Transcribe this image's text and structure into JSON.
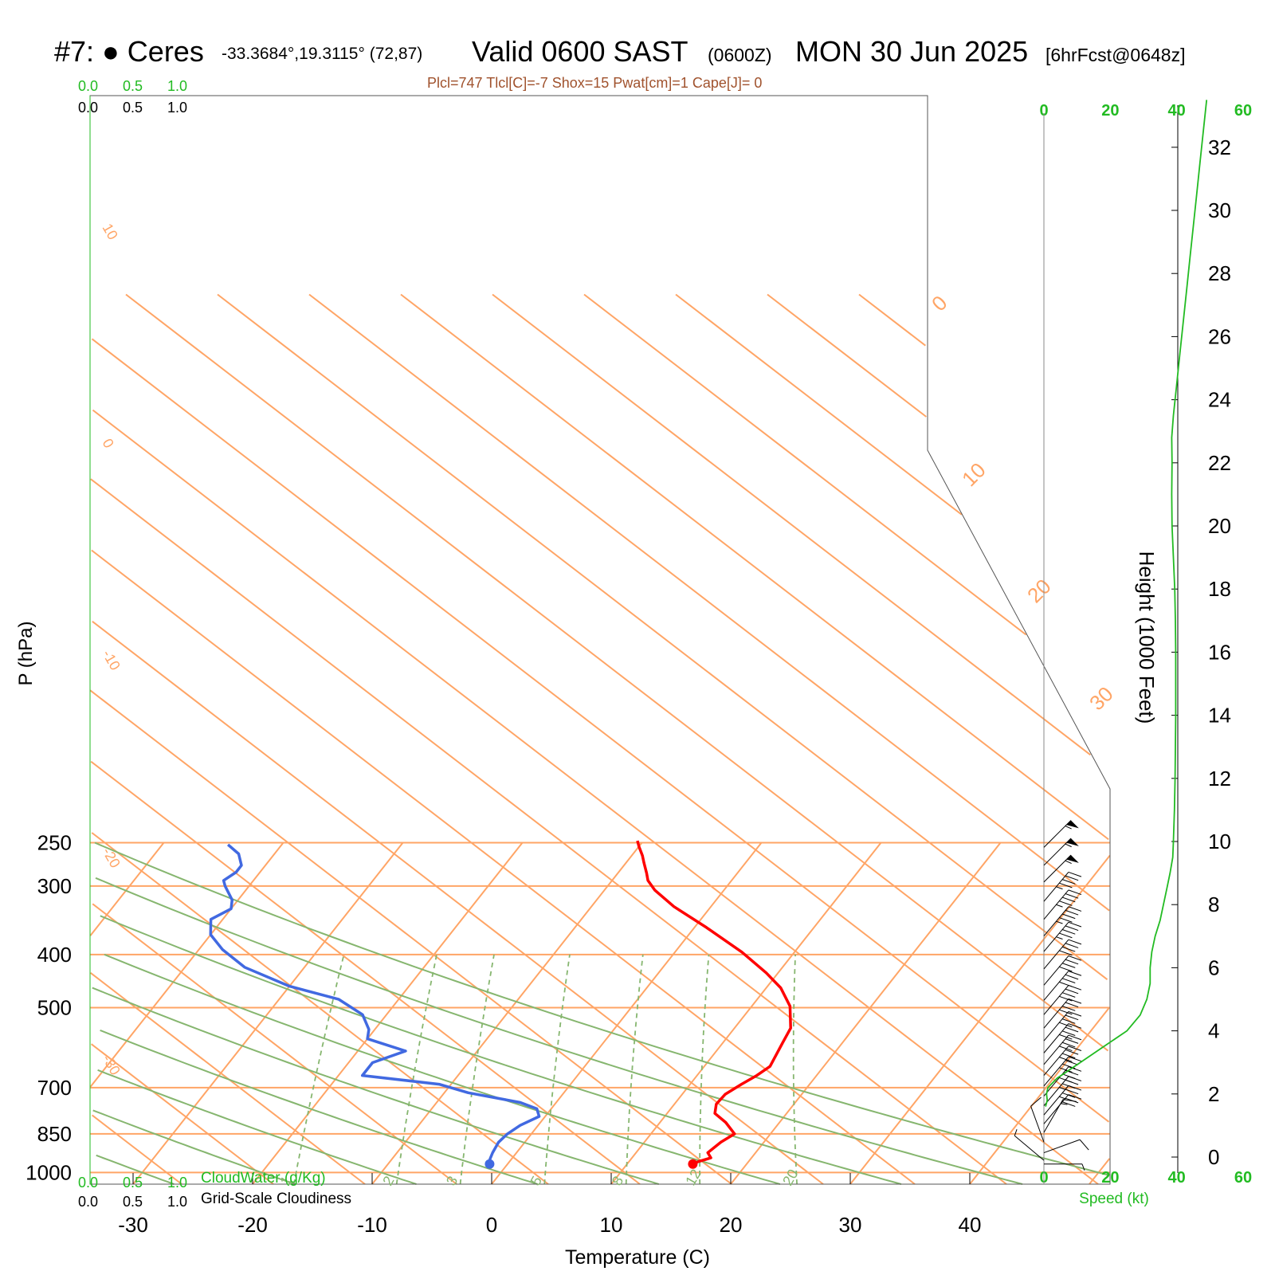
{
  "header": {
    "station": "#7:  ● Ceres",
    "coords": "-33.3684°,19.3115° (72,87)",
    "valid": "Valid 0600 SAST",
    "zulu": "(0600Z)",
    "date": "MON 30 Jun 2025",
    "forecast": "[6hrFcst@0648z]",
    "indices": "Plcl=747 Tlcl[C]=-7 Shox=15 Pwat[cm]=1 Cape[J]= 0"
  },
  "colors": {
    "temperature": "#ff0000",
    "dewpoint": "#4169e1",
    "isotherm": "#ffa566",
    "dry_adiabat": "#86b66f",
    "mixing_ratio": "#86b66f",
    "speed_profile": "#22bb22",
    "cloud_label": "#22bb22"
  },
  "chart_data": {
    "type": "line",
    "title": "",
    "xlabel": "Temperature (C)",
    "ylabel": "P (hPa)",
    "right_axis_label": "Height (1000 Feet)",
    "xlim": [
      -33,
      44
    ],
    "ylim": [
      1050,
      250
    ],
    "x_ticks": [
      "-30",
      "-20",
      "-10",
      "0",
      "10",
      "20",
      "30",
      "40"
    ],
    "y_ticks": [
      "250",
      "300",
      "400",
      "500",
      "700",
      "850",
      "1000"
    ],
    "height_ticks": [
      "0",
      "2",
      "4",
      "6",
      "8",
      "10",
      "12",
      "14",
      "16",
      "18",
      "20",
      "22",
      "24",
      "26",
      "28",
      "30",
      "32"
    ],
    "isotherm_labels": [
      "10",
      "0",
      "-10",
      "-20",
      "-30",
      "0",
      "10",
      "20",
      "30"
    ],
    "mixing_ratio_labels": [
      "1",
      "2",
      "3",
      "5",
      "8",
      "12",
      "20"
    ],
    "series": [
      {
        "name": "Temperature",
        "points": [
          [
            15.5,
            965
          ],
          [
            15.8,
            955
          ],
          [
            16.6,
            940
          ],
          [
            16.0,
            920
          ],
          [
            16.4,
            880
          ],
          [
            17.0,
            850
          ],
          [
            15.5,
            810
          ],
          [
            14.0,
            780
          ],
          [
            13.5,
            750
          ],
          [
            13.6,
            720
          ],
          [
            14.3,
            690
          ],
          [
            15.0,
            665
          ],
          [
            15.5,
            640
          ],
          [
            15.0,
            580
          ],
          [
            14.7,
            545
          ],
          [
            13.2,
            497
          ],
          [
            11.2,
            460
          ],
          [
            9.0,
            432
          ],
          [
            5.6,
            396
          ],
          [
            1.0,
            357
          ],
          [
            -3.1,
            327
          ],
          [
            -5.8,
            305
          ],
          [
            -7.0,
            293
          ],
          [
            -7.6,
            284
          ],
          [
            -8.5,
            272
          ],
          [
            -9.1,
            264
          ],
          [
            -10.0,
            254
          ],
          [
            -10.5,
            248
          ]
        ]
      },
      {
        "name": "Dewpoint",
        "points": [
          [
            -1.5,
            965
          ],
          [
            -1.8,
            945
          ],
          [
            -2.0,
            920
          ],
          [
            -2.2,
            880
          ],
          [
            -2.0,
            850
          ],
          [
            -1.5,
            820
          ],
          [
            -0.5,
            790
          ],
          [
            -1.2,
            765
          ],
          [
            -3.0,
            745
          ],
          [
            -8.0,
            715
          ],
          [
            -11.0,
            690
          ],
          [
            -18.0,
            665
          ],
          [
            -18.0,
            630
          ],
          [
            -16.0,
            600
          ],
          [
            -20.0,
            570
          ],
          [
            -20.5,
            548
          ],
          [
            -22.0,
            515
          ],
          [
            -25.0,
            483
          ],
          [
            -30.0,
            457
          ],
          [
            -35.0,
            422
          ],
          [
            -38.0,
            392
          ],
          [
            -40.0,
            368
          ],
          [
            -41.0,
            345
          ],
          [
            -40.0,
            330
          ],
          [
            -40.5,
            318
          ],
          [
            -42.0,
            300
          ],
          [
            -42.5,
            293
          ],
          [
            -42.0,
            283
          ],
          [
            -42.0,
            275
          ],
          [
            -43.0,
            262
          ],
          [
            -44.5,
            252
          ]
        ]
      },
      {
        "name": "Speed (kt)",
        "heights_kft": [
          1.6,
          1.8,
          2.0,
          2.2,
          2.5,
          3.0,
          3.5,
          4.0,
          4.5,
          5.0,
          5.5,
          6.0,
          6.5,
          7.0,
          7.5,
          8.0,
          8.5,
          9.0,
          9.5,
          10.0,
          11.0,
          12.0,
          13.0,
          14.0,
          15.0,
          16.0,
          17.0,
          18.0,
          19.0,
          20.0,
          21.0,
          22.0,
          22.8,
          23.5,
          24.5,
          25.5,
          26.5,
          27.5,
          28.5,
          29.5,
          30.5,
          31.5,
          32.5,
          33.5
        ],
        "speeds_kt": [
          0.5,
          1.0,
          0.8,
          1.2,
          4.0,
          11.0,
          18.0,
          25.0,
          29.0,
          31.0,
          32.0,
          32.0,
          32.5,
          33.5,
          35.0,
          36.0,
          37.0,
          38.0,
          38.8,
          39.0,
          39.3,
          39.5,
          39.6,
          39.7,
          39.7,
          39.7,
          39.6,
          39.4,
          39.0,
          38.6,
          38.5,
          38.6,
          38.5,
          39.0,
          40.0,
          41.0,
          42.0,
          43.0,
          44.0,
          45.0,
          46.0,
          47.0,
          48.0,
          49.0
        ]
      }
    ],
    "wind_barbs": [
      {
        "p": 255,
        "speed_kt": 55,
        "dir_deg": 315
      },
      {
        "p": 275,
        "speed_kt": 55,
        "dir_deg": 315
      },
      {
        "p": 295,
        "speed_kt": 55,
        "dir_deg": 315
      },
      {
        "p": 320,
        "speed_kt": 45,
        "dir_deg": 320
      },
      {
        "p": 345,
        "speed_kt": 45,
        "dir_deg": 320
      },
      {
        "p": 370,
        "speed_kt": 45,
        "dir_deg": 320
      },
      {
        "p": 395,
        "speed_kt": 45,
        "dir_deg": 320
      },
      {
        "p": 425,
        "speed_kt": 40,
        "dir_deg": 320
      },
      {
        "p": 455,
        "speed_kt": 40,
        "dir_deg": 320
      },
      {
        "p": 485,
        "speed_kt": 40,
        "dir_deg": 320
      },
      {
        "p": 515,
        "speed_kt": 40,
        "dir_deg": 320
      },
      {
        "p": 545,
        "speed_kt": 40,
        "dir_deg": 320
      },
      {
        "p": 575,
        "speed_kt": 40,
        "dir_deg": 320
      },
      {
        "p": 605,
        "speed_kt": 40,
        "dir_deg": 320
      },
      {
        "p": 635,
        "speed_kt": 40,
        "dir_deg": 320
      },
      {
        "p": 665,
        "speed_kt": 40,
        "dir_deg": 320
      },
      {
        "p": 695,
        "speed_kt": 40,
        "dir_deg": 320
      },
      {
        "p": 725,
        "speed_kt": 40,
        "dir_deg": 320
      },
      {
        "p": 755,
        "speed_kt": 35,
        "dir_deg": 320
      },
      {
        "p": 785,
        "speed_kt": 35,
        "dir_deg": 320
      },
      {
        "p": 815,
        "speed_kt": 30,
        "dir_deg": 320
      },
      {
        "p": 845,
        "speed_kt": 15,
        "dir_deg": 330
      },
      {
        "p": 880,
        "speed_kt": 10,
        "dir_deg": 20
      },
      {
        "p": 920,
        "speed_kt": 10,
        "dir_deg": 290
      },
      {
        "p": 950,
        "speed_kt": 5,
        "dir_deg": 50
      },
      {
        "p": 965,
        "speed_kt": 5,
        "dir_deg": 270
      }
    ],
    "legend": {
      "cloudwater": {
        "ticks": [
          "0.0",
          "0.5",
          "1.0"
        ],
        "label": "CloudWater (g/Kg)"
      },
      "cloudiness": {
        "ticks": [
          "0.0",
          "0.5",
          "1.0"
        ],
        "label": "Grid-Scale Cloudiness"
      }
    },
    "speed_axis": {
      "label": "Speed (kt)",
      "ticks": [
        "0",
        "20",
        "40",
        "60"
      ],
      "range": [
        0,
        60
      ]
    }
  }
}
